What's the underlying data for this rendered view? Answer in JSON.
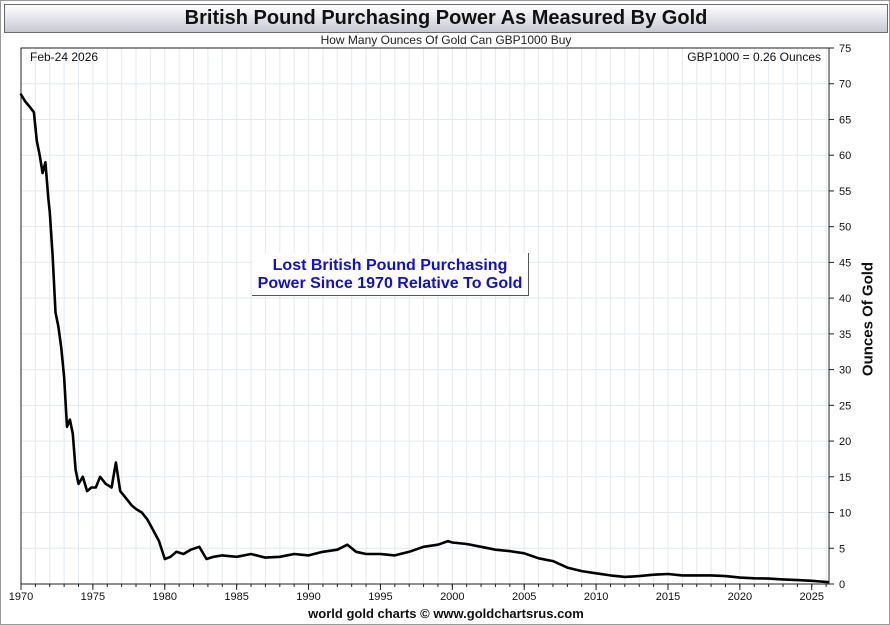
{
  "header": {
    "title": "British Pound Purchasing Power As Measured By Gold",
    "subtitle": "How Many Ounces Of Gold Can GBP1000 Buy"
  },
  "plot": {
    "date_label": "Feb-24  2026",
    "value_label": "GBP1000 = 0.26 Ounces"
  },
  "annotation": {
    "line1": "Lost British Pound Purchasing",
    "line2": "Power Since 1970 Relative To Gold"
  },
  "footer": "world gold charts © www.goldchartsrus.com",
  "colors": {
    "line": "#000000",
    "annotation_text": "#1010d0",
    "grid": "#e3e9ee"
  },
  "chart_data": {
    "type": "line",
    "title": "British Pound Purchasing Power As Measured By Gold",
    "subtitle": "How Many Ounces Of Gold Can GBP1000 Buy",
    "ylabel": "Ounces Of Gold",
    "xlabel": "",
    "xlim": [
      1970,
      2026.2
    ],
    "ylim": [
      0,
      75
    ],
    "x_ticks": [
      1970,
      1975,
      1980,
      1985,
      1990,
      1995,
      2000,
      2005,
      2010,
      2015,
      2020,
      2025
    ],
    "y_ticks": [
      0,
      5,
      10,
      15,
      20,
      25,
      30,
      35,
      40,
      45,
      50,
      55,
      60,
      65,
      70,
      75
    ],
    "y_axis_position": "right",
    "grid": true,
    "series": [
      {
        "x": [
          1970.0,
          1970.3,
          1970.6,
          1970.9,
          1971.1,
          1971.3,
          1971.5,
          1971.7,
          1971.9,
          1972.0,
          1972.2,
          1972.4,
          1972.6,
          1972.8,
          1973.0,
          1973.2,
          1973.4,
          1973.6,
          1973.8,
          1974.0,
          1974.3,
          1974.6,
          1974.9,
          1975.2,
          1975.5,
          1975.9,
          1976.3,
          1976.6,
          1976.9,
          1977.3,
          1977.7,
          1978.0,
          1978.4,
          1978.8,
          1979.2,
          1979.6,
          1980.0,
          1980.4,
          1980.8,
          1981.3,
          1981.8,
          1982.4,
          1982.9,
          1983.4,
          1984.0,
          1985.0,
          1986.0,
          1987.0,
          1988.0,
          1989.0,
          1990.0,
          1991.0,
          1992.0,
          1992.7,
          1993.3,
          1994.0,
          1995.0,
          1996.0,
          1997.0,
          1998.0,
          1999.0,
          1999.7,
          2000.0,
          2001.0,
          2002.0,
          2003.0,
          2004.0,
          2005.0,
          2006.0,
          2007.0,
          2008.0,
          2009.0,
          2010.0,
          2011.0,
          2012.0,
          2013.0,
          2014.0,
          2015.0,
          2016.0,
          2017.0,
          2018.0,
          2019.0,
          2020.0,
          2021.0,
          2022.0,
          2023.0,
          2024.0,
          2025.0,
          2025.6,
          2026.1
        ],
        "y": [
          68.5,
          67.5,
          66.8,
          66.0,
          62.0,
          60.0,
          57.5,
          59.0,
          54.0,
          52.0,
          46.0,
          38.0,
          36.0,
          33.0,
          29.0,
          22.0,
          23.0,
          21.0,
          16.0,
          14.0,
          15.0,
          13.0,
          13.5,
          13.5,
          15.0,
          14.0,
          13.5,
          17.0,
          13.0,
          12.0,
          11.0,
          10.5,
          10.0,
          9.0,
          7.5,
          6.0,
          3.5,
          3.8,
          4.5,
          4.2,
          4.8,
          5.2,
          3.5,
          3.8,
          4.0,
          3.8,
          4.2,
          3.7,
          3.8,
          4.2,
          4.0,
          4.5,
          4.8,
          5.5,
          4.5,
          4.2,
          4.2,
          4.0,
          4.5,
          5.2,
          5.5,
          6.0,
          5.8,
          5.6,
          5.2,
          4.8,
          4.6,
          4.3,
          3.6,
          3.2,
          2.3,
          1.8,
          1.5,
          1.2,
          1.0,
          1.1,
          1.3,
          1.4,
          1.2,
          1.2,
          1.2,
          1.1,
          0.9,
          0.8,
          0.75,
          0.65,
          0.55,
          0.45,
          0.35,
          0.26
        ]
      }
    ]
  }
}
